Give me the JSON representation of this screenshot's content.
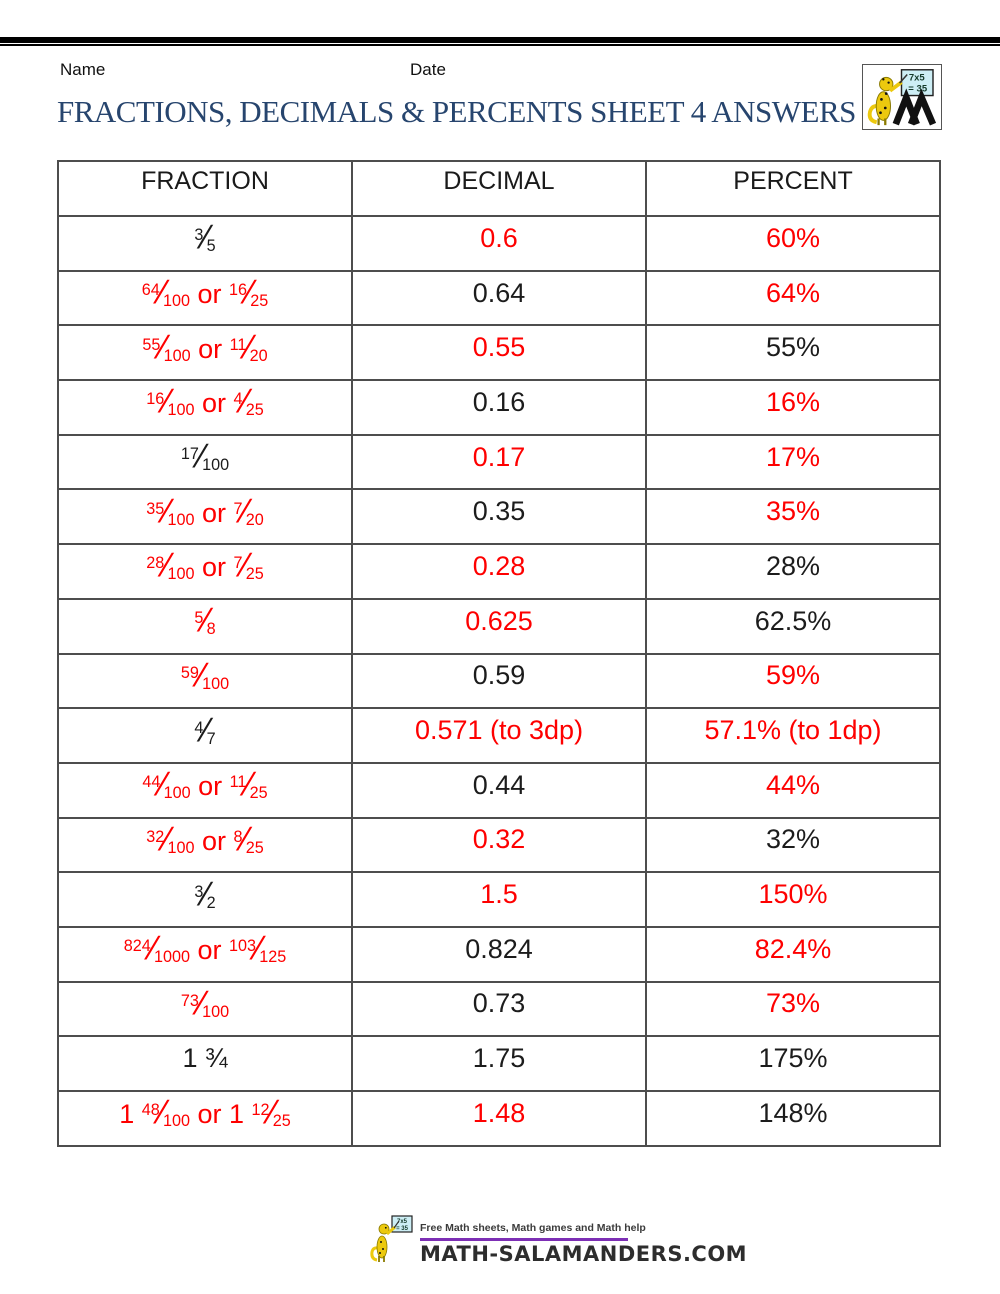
{
  "page": {
    "name_label": "Name",
    "date_label": "Date",
    "title": "FRACTIONS, DECIMALS & PERCENTS SHEET 4 ANSWERS"
  },
  "logo": {
    "board_line1": "7x5",
    "board_line2": "= 35"
  },
  "table": {
    "headers": [
      "FRACTION",
      "DECIMAL",
      "PERCENT"
    ],
    "rows": [
      {
        "fraction": {
          "tokens": [
            {
              "t": "frac",
              "num": "3",
              "den": "5"
            }
          ],
          "color": "black"
        },
        "decimal": {
          "text": "0.6",
          "color": "red"
        },
        "percent": {
          "text": "60%",
          "color": "red"
        }
      },
      {
        "fraction": {
          "tokens": [
            {
              "t": "frac",
              "num": "64",
              "den": "100"
            },
            {
              "t": "text",
              "v": " or "
            },
            {
              "t": "frac",
              "num": "16",
              "den": "25"
            }
          ],
          "color": "red"
        },
        "decimal": {
          "text": "0.64",
          "color": "black"
        },
        "percent": {
          "text": "64%",
          "color": "red"
        }
      },
      {
        "fraction": {
          "tokens": [
            {
              "t": "frac",
              "num": "55",
              "den": "100"
            },
            {
              "t": "text",
              "v": " or "
            },
            {
              "t": "frac",
              "num": "11",
              "den": "20"
            }
          ],
          "color": "red"
        },
        "decimal": {
          "text": "0.55",
          "color": "red"
        },
        "percent": {
          "text": "55%",
          "color": "black"
        }
      },
      {
        "fraction": {
          "tokens": [
            {
              "t": "frac",
              "num": "16",
              "den": "100"
            },
            {
              "t": "text",
              "v": " or "
            },
            {
              "t": "frac",
              "num": "4",
              "den": "25"
            }
          ],
          "color": "red"
        },
        "decimal": {
          "text": "0.16",
          "color": "black"
        },
        "percent": {
          "text": "16%",
          "color": "red"
        }
      },
      {
        "fraction": {
          "tokens": [
            {
              "t": "frac",
              "num": "17",
              "den": "100"
            }
          ],
          "color": "black"
        },
        "decimal": {
          "text": "0.17",
          "color": "red"
        },
        "percent": {
          "text": "17%",
          "color": "red"
        }
      },
      {
        "fraction": {
          "tokens": [
            {
              "t": "frac",
              "num": "35",
              "den": "100"
            },
            {
              "t": "text",
              "v": " or "
            },
            {
              "t": "frac",
              "num": "7",
              "den": "20"
            }
          ],
          "color": "red"
        },
        "decimal": {
          "text": "0.35",
          "color": "black"
        },
        "percent": {
          "text": "35%",
          "color": "red"
        }
      },
      {
        "fraction": {
          "tokens": [
            {
              "t": "frac",
              "num": "28",
              "den": "100"
            },
            {
              "t": "text",
              "v": " or "
            },
            {
              "t": "frac",
              "num": "7",
              "den": "25"
            }
          ],
          "color": "red"
        },
        "decimal": {
          "text": "0.28",
          "color": "red"
        },
        "percent": {
          "text": "28%",
          "color": "black"
        }
      },
      {
        "fraction": {
          "tokens": [
            {
              "t": "frac",
              "num": "5",
              "den": "8"
            }
          ],
          "color": "red"
        },
        "decimal": {
          "text": "0.625",
          "color": "red"
        },
        "percent": {
          "text": "62.5%",
          "color": "black"
        }
      },
      {
        "fraction": {
          "tokens": [
            {
              "t": "frac",
              "num": "59",
              "den": "100"
            }
          ],
          "color": "red"
        },
        "decimal": {
          "text": "0.59",
          "color": "black"
        },
        "percent": {
          "text": "59%",
          "color": "red"
        }
      },
      {
        "fraction": {
          "tokens": [
            {
              "t": "frac",
              "num": "4",
              "den": "7"
            }
          ],
          "color": "black"
        },
        "decimal": {
          "text": "0.571 (to 3dp)",
          "color": "red"
        },
        "percent": {
          "text": "57.1% (to 1dp)",
          "color": "red"
        }
      },
      {
        "fraction": {
          "tokens": [
            {
              "t": "frac",
              "num": "44",
              "den": "100"
            },
            {
              "t": "text",
              "v": " or "
            },
            {
              "t": "frac",
              "num": "11",
              "den": "25"
            }
          ],
          "color": "red"
        },
        "decimal": {
          "text": "0.44",
          "color": "black"
        },
        "percent": {
          "text": "44%",
          "color": "red"
        }
      },
      {
        "fraction": {
          "tokens": [
            {
              "t": "frac",
              "num": "32",
              "den": "100"
            },
            {
              "t": "text",
              "v": " or "
            },
            {
              "t": "frac",
              "num": "8",
              "den": "25"
            }
          ],
          "color": "red"
        },
        "decimal": {
          "text": "0.32",
          "color": "red"
        },
        "percent": {
          "text": "32%",
          "color": "black"
        }
      },
      {
        "fraction": {
          "tokens": [
            {
              "t": "frac",
              "num": "3",
              "den": "2"
            }
          ],
          "color": "black"
        },
        "decimal": {
          "text": "1.5",
          "color": "red"
        },
        "percent": {
          "text": "150%",
          "color": "red"
        }
      },
      {
        "fraction": {
          "tokens": [
            {
              "t": "frac",
              "num": "824",
              "den": "1000"
            },
            {
              "t": "text",
              "v": " or "
            },
            {
              "t": "frac",
              "num": "103",
              "den": "125"
            }
          ],
          "color": "red"
        },
        "decimal": {
          "text": "0.824",
          "color": "black"
        },
        "percent": {
          "text": "82.4%",
          "color": "red"
        }
      },
      {
        "fraction": {
          "tokens": [
            {
              "t": "frac",
              "num": "73",
              "den": "100"
            }
          ],
          "color": "red"
        },
        "decimal": {
          "text": "0.73",
          "color": "black"
        },
        "percent": {
          "text": "73%",
          "color": "red"
        }
      },
      {
        "fraction": {
          "tokens": [
            {
              "t": "text",
              "v": "1 ¾"
            }
          ],
          "color": "black"
        },
        "decimal": {
          "text": "1.75",
          "color": "black"
        },
        "percent": {
          "text": "175%",
          "color": "black"
        }
      },
      {
        "fraction": {
          "tokens": [
            {
              "t": "text",
              "v": "1 "
            },
            {
              "t": "frac",
              "num": "48",
              "den": "100"
            },
            {
              "t": "text",
              "v": " or 1 "
            },
            {
              "t": "frac",
              "num": "12",
              "den": "25"
            }
          ],
          "color": "red"
        },
        "decimal": {
          "text": "1.48",
          "color": "red"
        },
        "percent": {
          "text": "148%",
          "color": "black"
        }
      }
    ]
  },
  "footer": {
    "tagline": "Free Math sheets, Math games and Math help",
    "domain": "MATH-SALAMANDERS.COM",
    "board_line1": "7x5",
    "board_line2": "= 35"
  },
  "colors": {
    "answer_red": "#fe0000",
    "text_black": "#1c1c1c",
    "title_navy": "#27456e",
    "table_border": "#4d4d4d",
    "footer_purple": "#7d2fb5",
    "salamander_yellow": "#ecc90e",
    "board_blue": "#cdeef5"
  }
}
